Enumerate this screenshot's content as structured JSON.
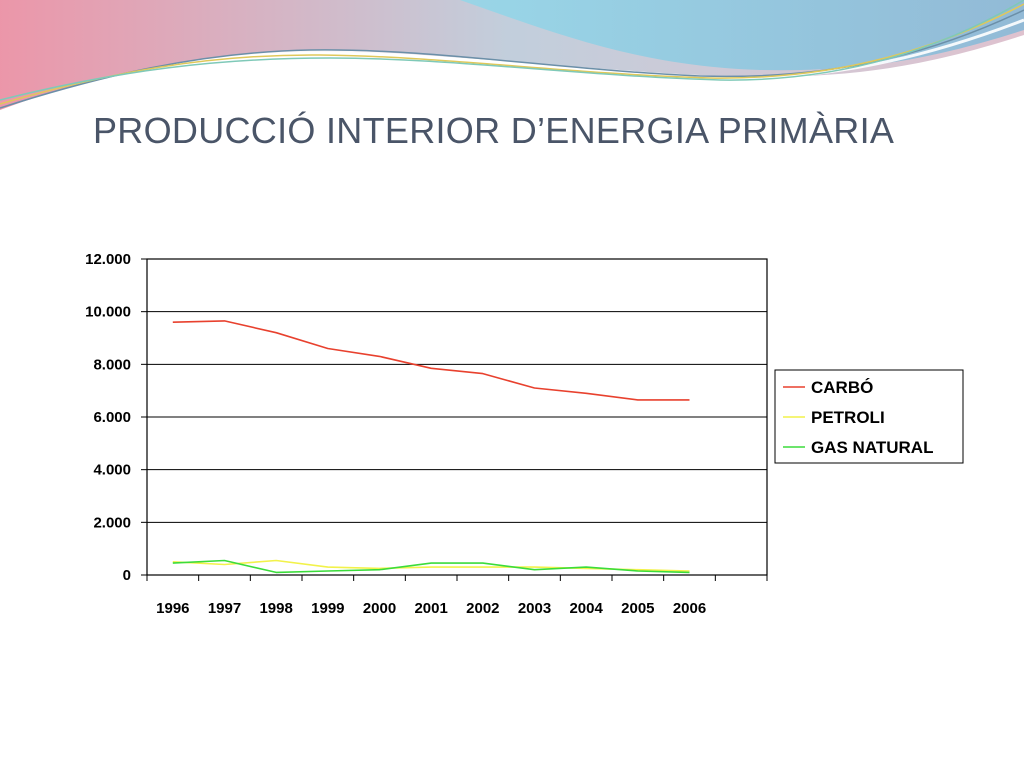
{
  "slide": {
    "title": "PRODUCCIÓ INTERIOR D’ENERGIA PRIMÀRIA"
  },
  "colors": {
    "carbo": "#e8412e",
    "petroli": "#f2f24a",
    "gas_natural": "#3bdc3b",
    "title": "#4a5568"
  },
  "chart_data": {
    "type": "line",
    "title": "PRODUCCIÓ INTERIOR D’ENERGIA PRIMÀRIA",
    "xlabel": "",
    "ylabel": "",
    "categories": [
      "1996",
      "1997",
      "1998",
      "1999",
      "2000",
      "2001",
      "2002",
      "2003",
      "2004",
      "2005",
      "2006"
    ],
    "ylim": [
      0,
      12000
    ],
    "yticks": [
      0,
      2000,
      4000,
      6000,
      8000,
      10000,
      12000
    ],
    "ytick_labels": [
      "0",
      "2.000",
      "4.000",
      "6.000",
      "8.000",
      "10.000",
      "12.000"
    ],
    "grid": true,
    "legend": "right",
    "series": [
      {
        "name": "CARBÓ",
        "color": "#e8412e",
        "values": [
          9600,
          9650,
          9200,
          8600,
          8300,
          7850,
          7650,
          7100,
          6900,
          6650,
          6650
        ]
      },
      {
        "name": "PETROLI",
        "color": "#f2f24a",
        "values": [
          500,
          400,
          550,
          300,
          250,
          300,
          300,
          300,
          250,
          200,
          150
        ]
      },
      {
        "name": "GAS NATURAL",
        "color": "#3bdc3b",
        "values": [
          450,
          550,
          100,
          150,
          200,
          450,
          450,
          200,
          300,
          150,
          100
        ]
      }
    ]
  }
}
